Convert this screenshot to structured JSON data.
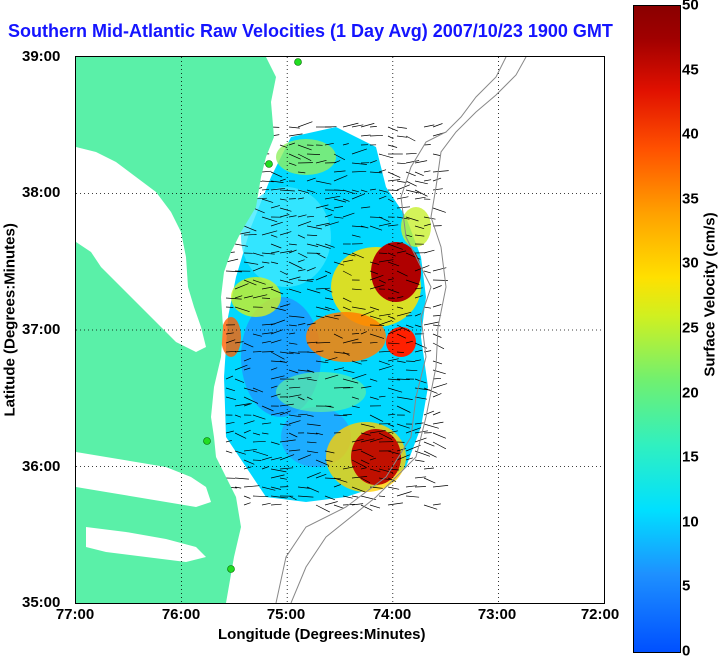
{
  "title": "Southern Mid-Atlantic Raw Velocities (1 Day Avg) 2007/10/23 1900 GMT",
  "axes": {
    "xlabel": "Longitude (Degrees:Minutes)",
    "ylabel": "Latitude (Degrees:Minutes)",
    "xticks": [
      "77:00",
      "76:00",
      "75:00",
      "74:00",
      "73:00",
      "72:00"
    ],
    "yticks": [
      "39:00",
      "38:00",
      "37:00",
      "36:00",
      "35:00"
    ]
  },
  "colorbar": {
    "label": "Surface Velocity (cm/s)",
    "ticks": [
      "50",
      "45",
      "40",
      "35",
      "30",
      "25",
      "20",
      "15",
      "10",
      "5",
      "0"
    ],
    "min": 0,
    "max": 50,
    "colors": [
      "#0050ff",
      "#00e0ff",
      "#70f070",
      "#ffe000",
      "#ff5000",
      "#8a0000"
    ]
  },
  "map": {
    "land_color": "#5af0a8",
    "water_color": "#ffffff",
    "bathymetry_color": "#888888",
    "grid_style": "dotted",
    "station_marker_color": "#22dd22"
  }
}
